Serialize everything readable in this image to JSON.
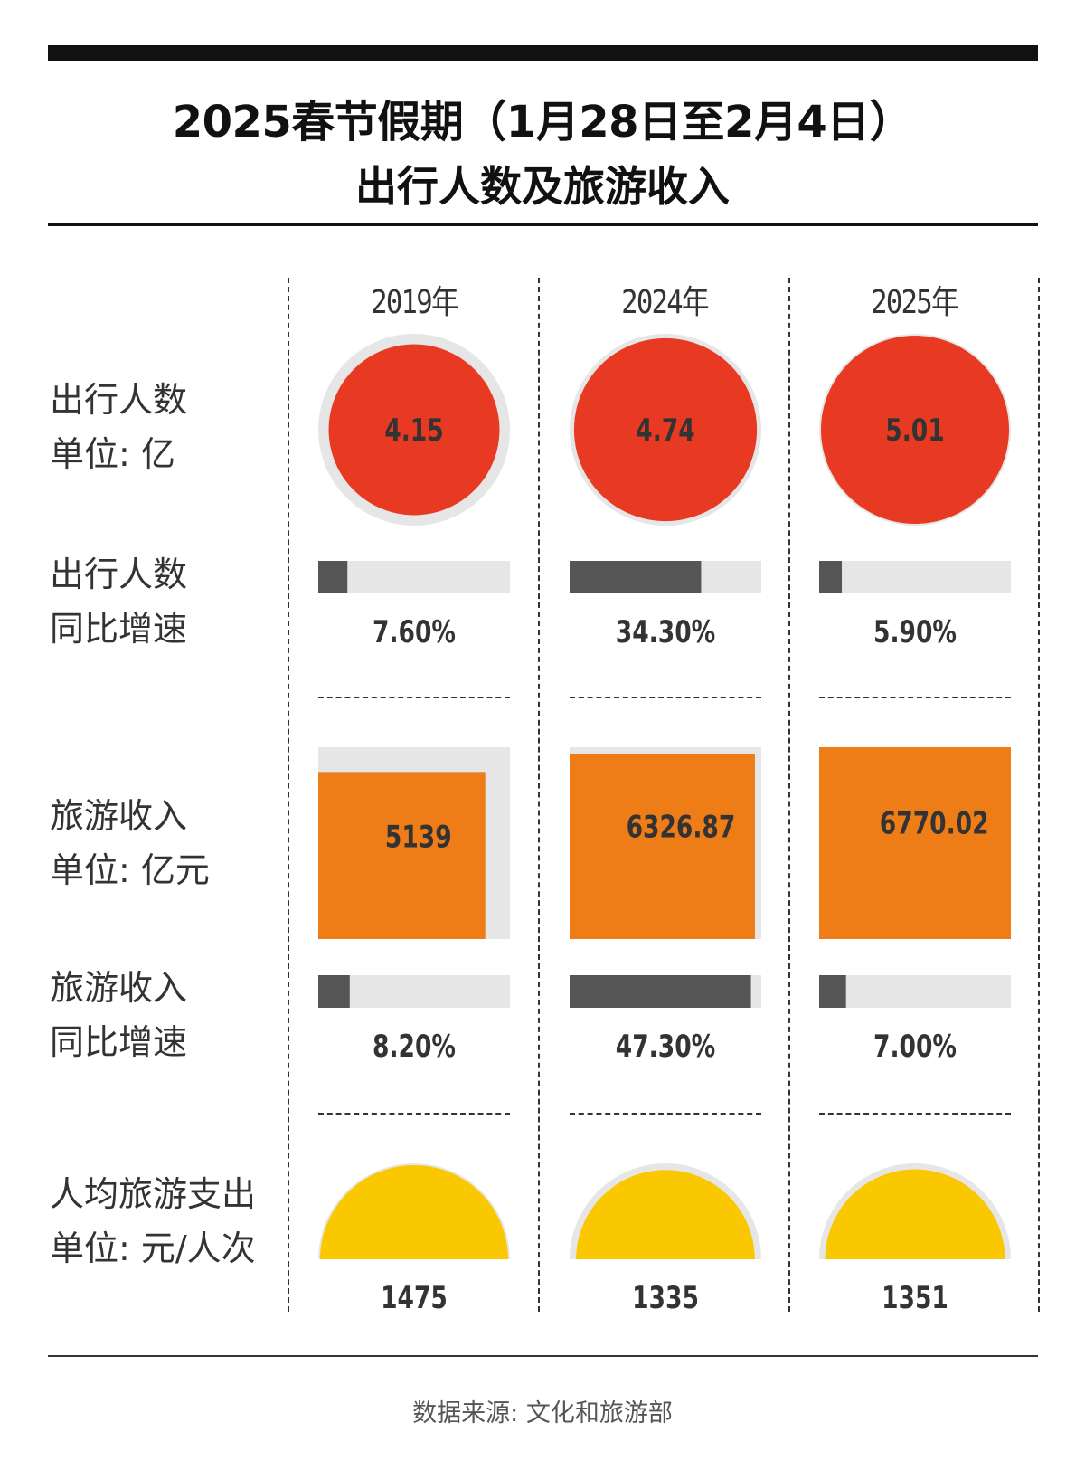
{
  "title": {
    "line1": "2025春节假期（1月28日至2月4日）",
    "line2": "出行人数及旅游收入"
  },
  "years": [
    "2019年",
    "2024年",
    "2025年"
  ],
  "row_labels": {
    "travelers": [
      "出行人数",
      "单位: 亿"
    ],
    "travelers_growth": [
      "出行人数",
      "同比增速"
    ],
    "revenue": [
      "旅游收入",
      "单位: 亿元"
    ],
    "revenue_growth": [
      "旅游收入",
      "同比增速"
    ],
    "per_capita": [
      "人均旅游支出",
      "单位: 元/人次"
    ]
  },
  "source": "数据来源: 文化和旅游部",
  "colors": {
    "circle": "#E83A22",
    "square": "#EE7C17",
    "semicircle": "#FAC800",
    "bar": "#555555",
    "track": "#E6E6E6"
  },
  "chart_data": [
    {
      "type": "bubble",
      "categories": [
        "2019年",
        "2024年",
        "2025年"
      ],
      "values": [
        4.15,
        4.74,
        5.01
      ],
      "labels": [
        "4.15",
        "4.74",
        "5.01"
      ]
    },
    {
      "type": "bar",
      "categories": [
        "2019年",
        "2024年",
        "2025年"
      ],
      "values": [
        7.6,
        34.3,
        5.9
      ],
      "labels": [
        "7.60%",
        "34.30%",
        "5.90%"
      ]
    },
    {
      "type": "square",
      "categories": [
        "2019年",
        "2024年",
        "2025年"
      ],
      "values": [
        5139,
        6326.87,
        6770.02
      ],
      "labels": [
        "5139",
        "6326.87",
        "6770.02"
      ]
    },
    {
      "type": "bar",
      "categories": [
        "2019年",
        "2024年",
        "2025年"
      ],
      "values": [
        8.2,
        47.3,
        7.0
      ],
      "labels": [
        "8.20%",
        "47.30%",
        "7.00%"
      ]
    },
    {
      "type": "semicircle",
      "categories": [
        "2019年",
        "2024年",
        "2025年"
      ],
      "values": [
        1475,
        1335,
        1351
      ],
      "labels": [
        "1475",
        "1335",
        "1351"
      ]
    }
  ]
}
